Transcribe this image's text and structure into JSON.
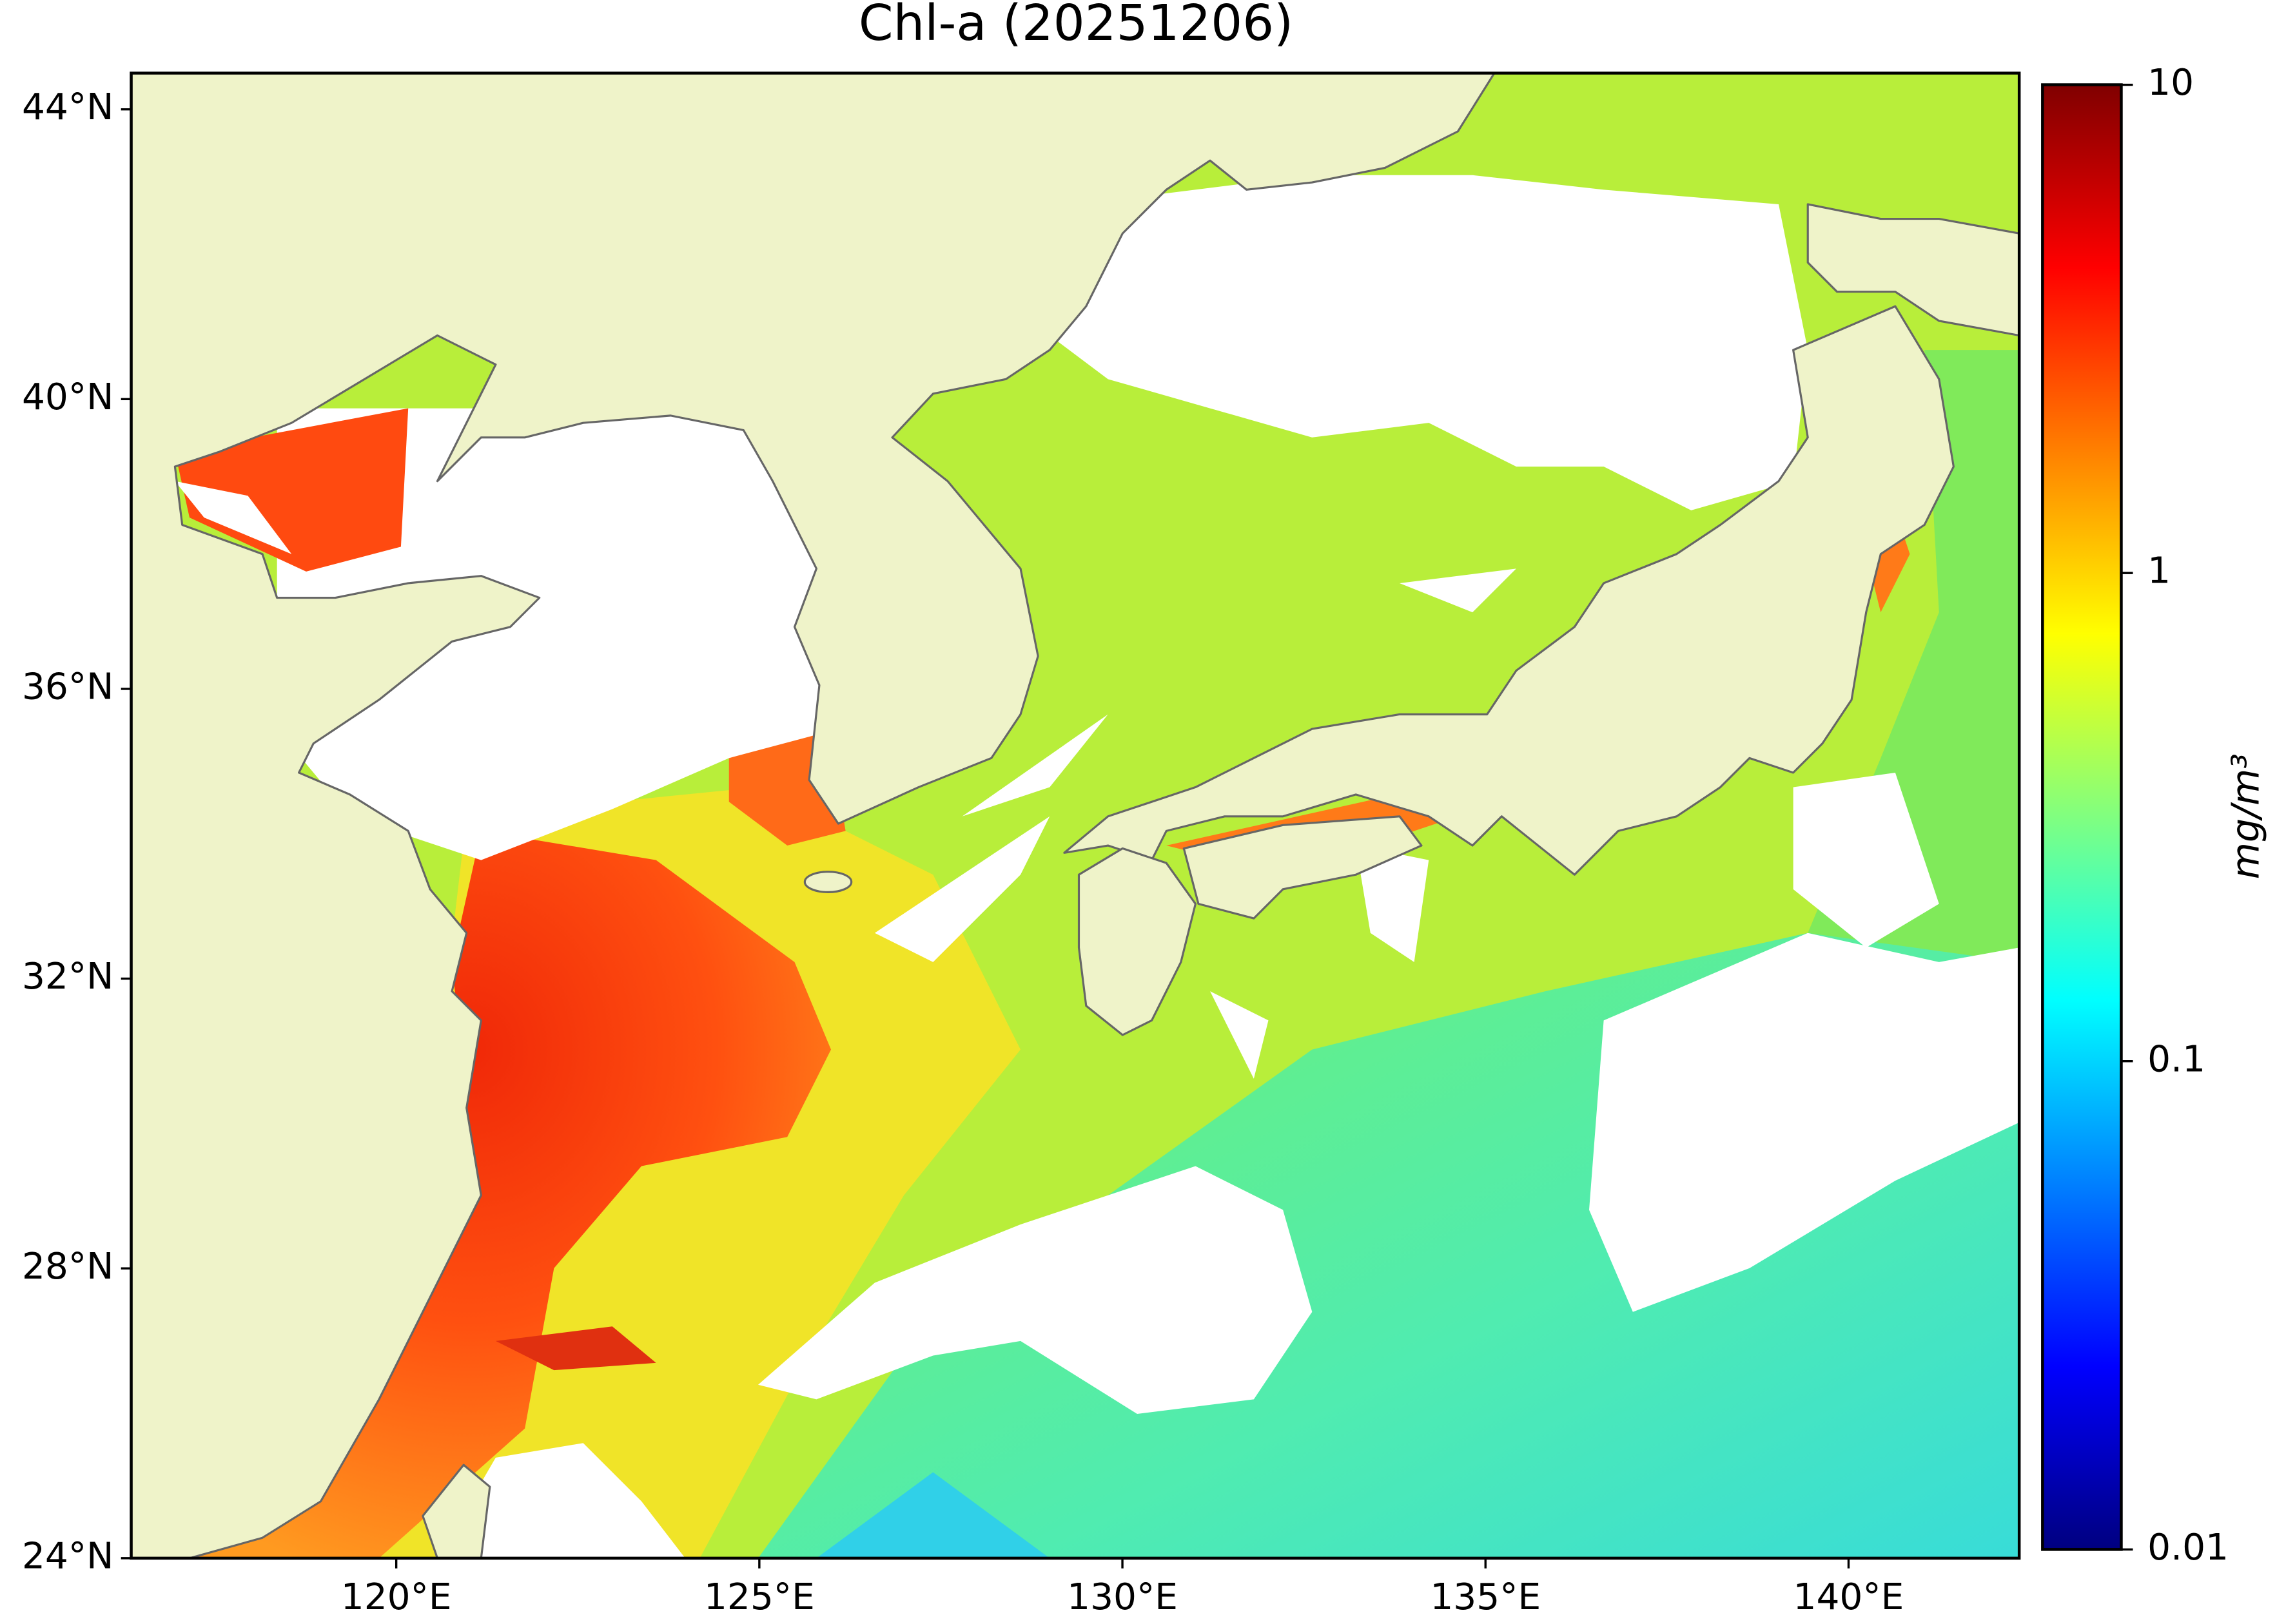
{
  "chart_data": {
    "type": "map",
    "title": "Chl-a (20251206)",
    "xlim": [
      116.35,
      142.35
    ],
    "ylim": [
      24,
      44.5
    ],
    "xticks": [
      {
        "value": 120,
        "label": "120°E"
      },
      {
        "value": 125,
        "label": "125°E"
      },
      {
        "value": 130,
        "label": "130°E"
      },
      {
        "value": 135,
        "label": "135°E"
      },
      {
        "value": 140,
        "label": "140°E"
      }
    ],
    "yticks": [
      {
        "value": 24,
        "label": "24°N"
      },
      {
        "value": 28,
        "label": "28°N"
      },
      {
        "value": 32,
        "label": "32°N"
      },
      {
        "value": 36,
        "label": "36°N"
      },
      {
        "value": 40,
        "label": "40°N"
      },
      {
        "value": 44,
        "label": "44°N"
      }
    ],
    "land_color": "#eff3c9",
    "colorbar": {
      "label": "mg/m³",
      "scale": "log",
      "lim": [
        0.01,
        10
      ],
      "ticks": [
        0.01,
        0.1,
        1,
        10
      ],
      "colormap": [
        "#800000",
        "#ff0000",
        "#ff8000",
        "#ffff00",
        "#80ff80",
        "#00ffff",
        "#0080ff",
        "#0000ff",
        "#000080"
      ]
    }
  }
}
